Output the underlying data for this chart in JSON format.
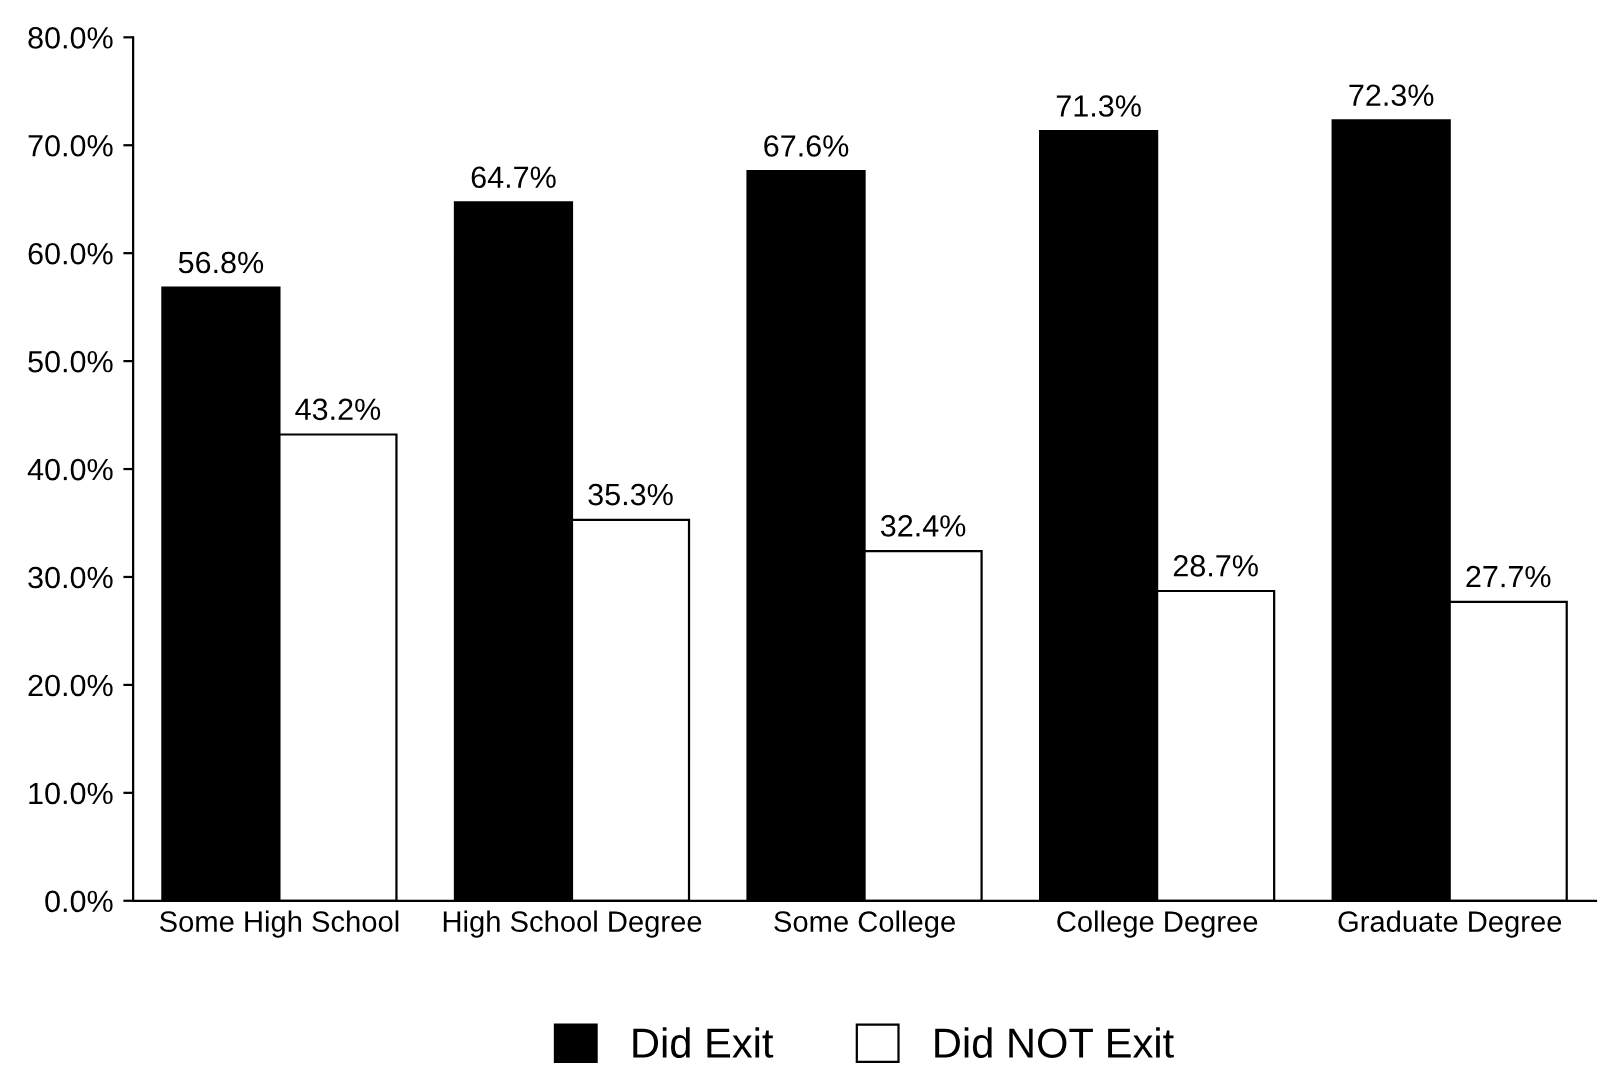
{
  "chart_data": {
    "type": "bar",
    "categories": [
      "Some High School",
      "High School Degree",
      "Some College",
      "College Degree",
      "Graduate Degree"
    ],
    "series": [
      {
        "name": "Did Exit",
        "color": "#000000",
        "values": [
          56.8,
          64.7,
          67.6,
          71.3,
          72.3
        ],
        "value_labels": [
          "56.8%",
          "64.7%",
          "67.6%",
          "71.3%",
          "72.3%"
        ]
      },
      {
        "name": "Did NOT Exit",
        "color": "#ffffff",
        "values": [
          43.2,
          35.3,
          32.4,
          28.7,
          27.7
        ],
        "value_labels": [
          "43.2%",
          "35.3%",
          "32.4%",
          "28.7%",
          "27.7%"
        ]
      }
    ],
    "ylim": [
      0,
      80
    ],
    "yticks": [
      {
        "value": 0,
        "label": "0.0%"
      },
      {
        "value": 10,
        "label": "10.0%"
      },
      {
        "value": 20,
        "label": "20.0%"
      },
      {
        "value": 30,
        "label": "30.0%"
      },
      {
        "value": 40,
        "label": "40.0%"
      },
      {
        "value": 50,
        "label": "50.0%"
      },
      {
        "value": 60,
        "label": "60.0%"
      },
      {
        "value": 70,
        "label": "70.0%"
      },
      {
        "value": 80,
        "label": "80.0%"
      }
    ],
    "grid": false,
    "legend": "bottom"
  }
}
